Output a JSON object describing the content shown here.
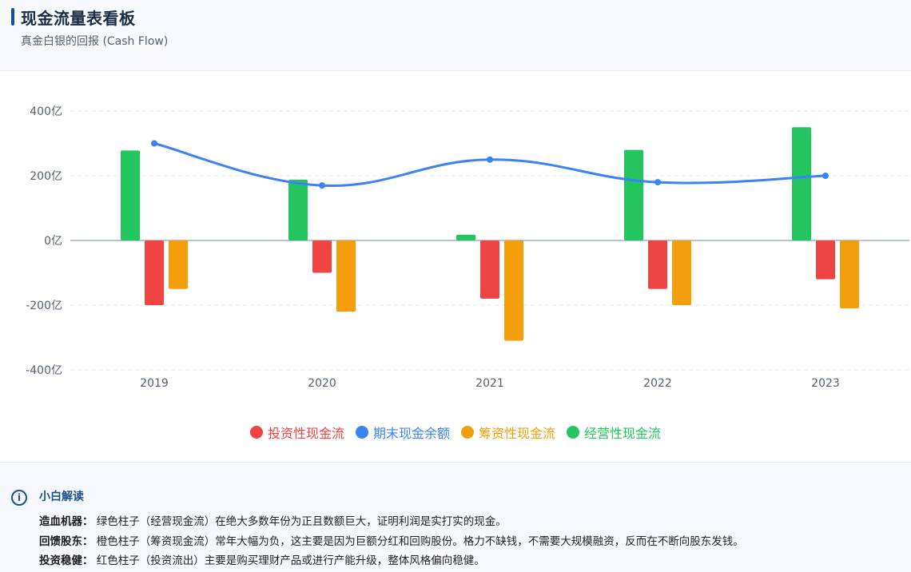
{
  "header": {
    "title": "现金流量表看板",
    "subtitle": "真金白银的回报 (Cash Flow)"
  },
  "chart_data": {
    "type": "bar",
    "categories": [
      "2019",
      "2020",
      "2021",
      "2022",
      "2023"
    ],
    "y_ticks": [
      "400亿",
      "200亿",
      "0亿",
      "-200亿",
      "-400亿"
    ],
    "ylim": [
      -400,
      400
    ],
    "grid": true,
    "series": [
      {
        "name": "经营性现金流",
        "type": "bar",
        "color": "#22c55e",
        "values": [
          278,
          188,
          18,
          280,
          350
        ]
      },
      {
        "name": "投资性现金流",
        "type": "bar",
        "color": "#ef4444",
        "values": [
          -200,
          -100,
          -180,
          -150,
          -120
        ]
      },
      {
        "name": "筹资性现金流",
        "type": "bar",
        "color": "#f59e0b",
        "values": [
          -150,
          -220,
          -310,
          -200,
          -210
        ]
      },
      {
        "name": "期末现金余额",
        "type": "line",
        "color": "#3b82f6",
        "values": [
          300,
          170,
          250,
          180,
          200
        ]
      }
    ],
    "legend": {
      "placement": "bottom",
      "items": [
        {
          "label": "投资性现金流",
          "color": "#ef4444"
        },
        {
          "label": "期末现金余额",
          "color": "#3b82f6"
        },
        {
          "label": "筹资性现金流",
          "color": "#f59e0b"
        },
        {
          "label": "经营性现金流",
          "color": "#22c55e"
        }
      ]
    }
  },
  "insight": {
    "title": "小白解读",
    "lines": [
      {
        "key": "造血机器：",
        "text": "绿色柱子（经营现金流）在绝大多数年份为正且数额巨大，证明利润是实打实的现金。"
      },
      {
        "key": "回馈股东：",
        "text": "橙色柱子（筹资现金流）常年大幅为负，这主要是因为巨额分红和回购股份。格力不缺钱，不需要大规模融资，反而在不断向股东发钱。"
      },
      {
        "key": "投资稳健：",
        "text": "红色柱子（投资流出）主要是购买理财产品或进行产能升级，整体风格偏向稳健。"
      }
    ]
  }
}
